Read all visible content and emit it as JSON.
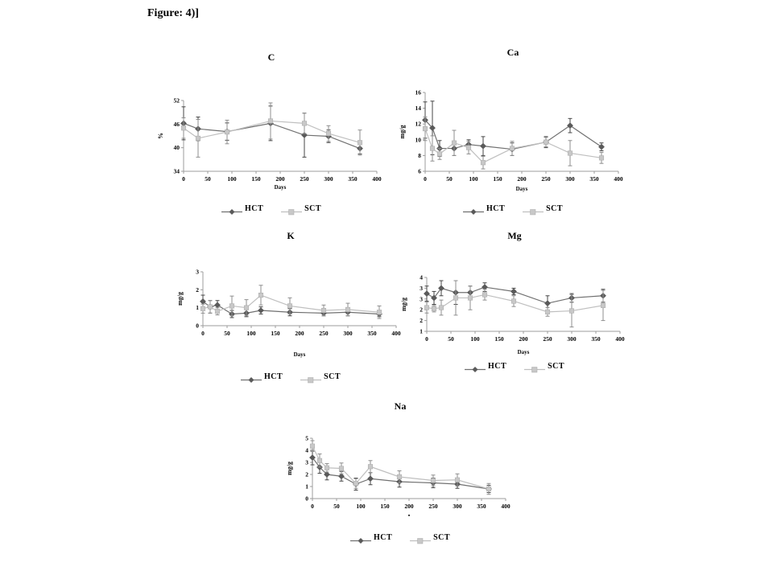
{
  "page": {
    "figure_label": "Figure: 4)]",
    "background_color": "#ffffff",
    "axis_color": "#9c9c9c",
    "legend_entries": [
      "HCT",
      "SCT"
    ]
  },
  "chart_data": [
    {
      "type": "line",
      "title": "C",
      "ylabel": "%",
      "xlabel": "Days",
      "xlim": [
        0,
        400
      ],
      "xticks": [
        0,
        50,
        100,
        150,
        200,
        250,
        300,
        350,
        400
      ],
      "ylim": [
        34,
        52
      ],
      "yticks": [
        34,
        40,
        46,
        52
      ],
      "ytick_labels": [
        "34",
        "40",
        "46",
        "52"
      ],
      "grid": false,
      "legend_position": "bottom",
      "x": [
        0,
        30,
        90,
        180,
        250,
        300,
        365
      ],
      "series": [
        {
          "name": "HCT",
          "marker": "diamond",
          "line_color": "#707070",
          "marker_color": "#5a5a5a",
          "error_color": "#474747",
          "values": [
            46.2,
            44.8,
            44.1,
            46.2,
            43.2,
            42.9,
            39.8
          ],
          "errors": [
            4.2,
            3.0,
            2.2,
            4.4,
            5.6,
            1.6,
            1.4
          ]
        },
        {
          "name": "SCT",
          "marker": "square",
          "line_color": "#bfbfbf",
          "marker_color": "#c8c8c8",
          "error_color": "#8f8f8f",
          "values": [
            45.0,
            42.4,
            44.0,
            46.8,
            46.2,
            43.6,
            41.3
          ],
          "errors": [
            2.6,
            4.8,
            3.0,
            4.6,
            2.6,
            2.0,
            3.2
          ]
        }
      ]
    },
    {
      "type": "line",
      "title": "Ca",
      "ylabel": "mg/g",
      "xlabel": "Days",
      "xlim": [
        0,
        400
      ],
      "xticks": [
        0,
        50,
        100,
        150,
        200,
        250,
        300,
        350,
        400
      ],
      "ylim": [
        6,
        16
      ],
      "yticks": [
        6,
        8,
        10,
        12,
        14,
        16
      ],
      "ytick_labels": [
        "6",
        "8",
        "10",
        "12",
        "14",
        "16"
      ],
      "grid": false,
      "legend_position": "bottom",
      "x": [
        0,
        15,
        30,
        60,
        90,
        120,
        180,
        250,
        300,
        365
      ],
      "series": [
        {
          "name": "HCT",
          "marker": "diamond",
          "line_color": "#707070",
          "marker_color": "#5a5a5a",
          "error_color": "#474747",
          "values": [
            12.5,
            11.5,
            8.9,
            8.9,
            9.4,
            9.2,
            8.8,
            9.7,
            11.8,
            9.1
          ],
          "errors": [
            2.3,
            3.4,
            1.0,
            0.9,
            0.6,
            1.2,
            0.8,
            0.7,
            0.9,
            0.5
          ]
        },
        {
          "name": "SCT",
          "marker": "square",
          "line_color": "#bfbfbf",
          "marker_color": "#c8c8c8",
          "error_color": "#8f8f8f",
          "values": [
            11.4,
            8.9,
            8.2,
            9.6,
            9.0,
            7.1,
            8.9,
            9.7,
            8.3,
            7.7
          ],
          "errors": [
            1.5,
            1.6,
            0.7,
            1.6,
            0.8,
            0.8,
            0.9,
            0.6,
            1.6,
            0.7
          ]
        }
      ]
    },
    {
      "type": "line",
      "title": "K",
      "ylabel": "mg/g",
      "xlabel": "Days",
      "xlim": [
        0,
        400
      ],
      "xticks": [
        0,
        50,
        100,
        150,
        200,
        250,
        300,
        350,
        400
      ],
      "ylim": [
        0,
        3
      ],
      "yticks": [
        0,
        1,
        2,
        3
      ],
      "ytick_labels": [
        "0",
        "1",
        "2",
        "3"
      ],
      "grid": false,
      "legend_position": "bottom",
      "x": [
        0,
        15,
        30,
        60,
        90,
        120,
        180,
        250,
        300,
        365
      ],
      "series": [
        {
          "name": "HCT",
          "marker": "diamond",
          "line_color": "#707070",
          "marker_color": "#5a5a5a",
          "error_color": "#474747",
          "values": [
            1.35,
            1.05,
            1.15,
            0.65,
            0.7,
            0.85,
            0.75,
            0.7,
            0.75,
            0.65
          ],
          "errors": [
            0.35,
            0.35,
            0.25,
            0.2,
            0.2,
            0.2,
            0.2,
            0.15,
            0.2,
            0.15
          ]
        },
        {
          "name": "SCT",
          "marker": "square",
          "line_color": "#bfbfbf",
          "marker_color": "#c8c8c8",
          "error_color": "#8f8f8f",
          "values": [
            0.95,
            1.05,
            0.8,
            1.1,
            1.0,
            1.7,
            1.1,
            0.85,
            0.9,
            0.75
          ],
          "errors": [
            0.25,
            0.35,
            0.2,
            0.55,
            0.45,
            0.55,
            0.45,
            0.3,
            0.35,
            0.35
          ]
        }
      ]
    },
    {
      "type": "line",
      "title": "Mg",
      "ylabel": "mg/g",
      "xlabel": "Days",
      "xlim": [
        0,
        400
      ],
      "xticks": [
        0,
        50,
        100,
        150,
        200,
        250,
        300,
        350,
        400
      ],
      "ylim": [
        1,
        3.5
      ],
      "yticks": [
        1,
        1.5,
        2,
        2.5,
        3,
        3.5
      ],
      "ytick_labels": [
        "1",
        "2",
        "2",
        "3",
        "3",
        "4"
      ],
      "grid": false,
      "legend_position": "bottom",
      "x": [
        0,
        15,
        30,
        60,
        90,
        120,
        180,
        250,
        300,
        365
      ],
      "series": [
        {
          "name": "HCT",
          "marker": "diamond",
          "line_color": "#707070",
          "marker_color": "#5a5a5a",
          "error_color": "#474747",
          "values": [
            2.75,
            2.55,
            3.0,
            2.8,
            2.8,
            3.05,
            2.85,
            2.3,
            2.55,
            2.65
          ],
          "errors": [
            0.35,
            0.3,
            0.35,
            0.55,
            0.3,
            0.2,
            0.15,
            0.35,
            0.2,
            0.3
          ]
        },
        {
          "name": "SCT",
          "marker": "square",
          "line_color": "#bfbfbf",
          "marker_color": "#c8c8c8",
          "error_color": "#8f8f8f",
          "values": [
            2.1,
            2.05,
            2.1,
            2.55,
            2.55,
            2.7,
            2.4,
            1.9,
            1.95,
            2.2
          ],
          "errors": [
            0.25,
            0.15,
            0.35,
            0.8,
            0.55,
            0.25,
            0.25,
            0.2,
            0.75,
            0.7
          ]
        }
      ]
    },
    {
      "type": "line",
      "title": "Na",
      "ylabel": "mg/g",
      "xlabel": "▪",
      "xlim": [
        0,
        400
      ],
      "xticks": [
        0,
        50,
        100,
        150,
        200,
        250,
        300,
        350,
        400
      ],
      "ylim": [
        0,
        5
      ],
      "yticks": [
        0,
        1,
        2,
        3,
        4,
        5
      ],
      "ytick_labels": [
        "0",
        "1",
        "2",
        "3",
        "4",
        "5"
      ],
      "grid": false,
      "legend_position": "bottom",
      "x": [
        0,
        15,
        30,
        60,
        90,
        120,
        180,
        250,
        300,
        365
      ],
      "series": [
        {
          "name": "HCT",
          "marker": "diamond",
          "line_color": "#707070",
          "marker_color": "#5a5a5a",
          "error_color": "#474747",
          "values": [
            3.4,
            2.6,
            2.0,
            1.85,
            1.2,
            1.65,
            1.4,
            1.3,
            1.2,
            0.8
          ],
          "errors": [
            0.6,
            0.5,
            0.45,
            0.4,
            0.5,
            0.5,
            0.45,
            0.4,
            0.35,
            0.3
          ]
        },
        {
          "name": "SCT",
          "marker": "square",
          "line_color": "#bfbfbf",
          "marker_color": "#c8c8c8",
          "error_color": "#8f8f8f",
          "values": [
            4.35,
            3.15,
            2.55,
            2.5,
            1.25,
            2.65,
            1.8,
            1.5,
            1.55,
            0.8
          ],
          "errors": [
            0.45,
            0.55,
            0.35,
            0.45,
            0.4,
            0.5,
            0.5,
            0.45,
            0.5,
            0.45
          ]
        }
      ]
    }
  ]
}
